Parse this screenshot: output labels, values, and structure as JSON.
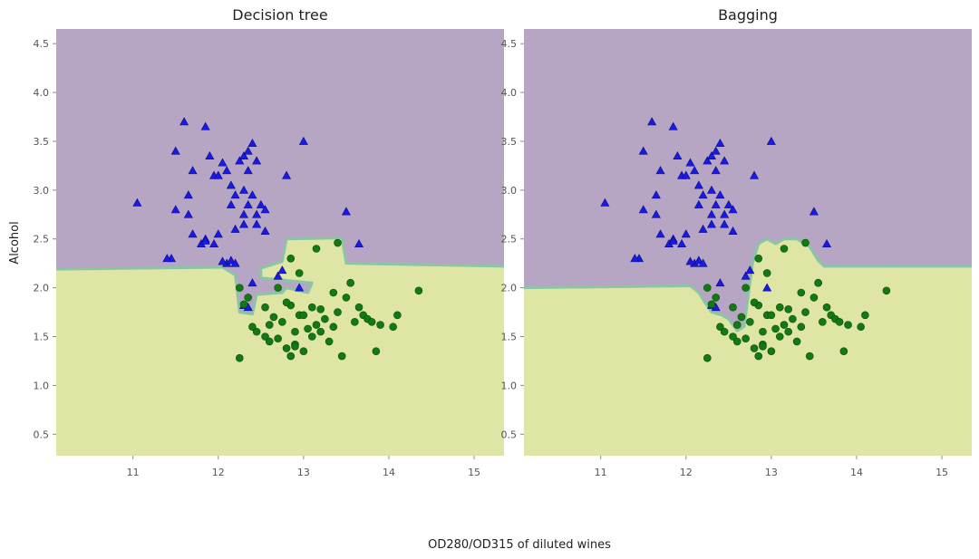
{
  "figure": {
    "xlabel": "OD280/OD315 of diluted wines",
    "ylabel": "Alcohol"
  },
  "colors": {
    "region_class0": "#b6a6c4",
    "region_class1": "#dfe5a4",
    "boundary": "#8cc4a6",
    "class0_marker": "#1a1ae6",
    "class1_marker": "#137a13"
  },
  "chart_data": [
    {
      "type": "scatter",
      "title": "Decision tree",
      "xlim": [
        10.1,
        15.35
      ],
      "ylim": [
        0.28,
        4.65
      ],
      "xticks": [
        "11",
        "12",
        "13",
        "14",
        "15"
      ],
      "yticks": [
        "0.5",
        "1.0",
        "1.5",
        "2.0",
        "2.5",
        "3.0",
        "3.5",
        "4.0",
        "4.5"
      ],
      "grid": false,
      "decision_boundary": [
        [
          10.1,
          2.19
        ],
        [
          12.05,
          2.21
        ],
        [
          12.2,
          2.13
        ],
        [
          12.25,
          1.75
        ],
        [
          12.4,
          1.73
        ],
        [
          12.45,
          1.93
        ],
        [
          12.75,
          1.95
        ],
        [
          12.8,
          2.0
        ],
        [
          13.05,
          1.95
        ],
        [
          13.1,
          2.05
        ],
        [
          12.75,
          2.08
        ],
        [
          12.5,
          2.1
        ],
        [
          12.5,
          2.2
        ],
        [
          12.75,
          2.27
        ],
        [
          12.8,
          2.5
        ],
        [
          13.45,
          2.51
        ],
        [
          13.5,
          2.25
        ],
        [
          15.35,
          2.22
        ]
      ],
      "series": [
        {
          "marker": "triangle",
          "x": [
            11.05,
            11.45,
            11.6,
            11.5,
            11.7,
            11.65,
            11.65,
            11.85,
            11.9,
            11.95,
            12.0,
            12.05,
            12.1,
            12.15,
            12.2,
            12.25,
            12.3,
            12.35,
            12.4,
            12.35,
            12.3,
            12.45,
            12.4,
            12.5,
            12.35,
            12.3,
            12.45,
            12.55,
            12.3,
            12.45,
            12.15,
            12.2,
            12.0,
            11.95,
            11.85,
            11.8,
            11.85,
            11.4,
            11.5,
            11.7,
            12.1,
            12.05,
            12.15,
            12.2,
            12.4,
            12.7,
            12.75,
            12.95,
            13.5,
            13.65,
            12.55,
            12.8,
            13.0,
            12.3,
            12.35
          ],
          "y": [
            2.87,
            2.3,
            3.7,
            3.4,
            3.2,
            2.95,
            2.75,
            3.65,
            3.35,
            3.15,
            3.15,
            3.28,
            3.2,
            3.05,
            2.95,
            3.3,
            3.35,
            3.4,
            3.48,
            3.2,
            3.0,
            3.3,
            2.95,
            2.85,
            2.85,
            2.75,
            2.75,
            2.8,
            2.65,
            2.65,
            2.85,
            2.6,
            2.55,
            2.45,
            2.5,
            2.45,
            2.48,
            2.3,
            2.8,
            2.55,
            2.25,
            2.27,
            2.28,
            2.25,
            2.05,
            2.12,
            2.18,
            2.0,
            2.78,
            2.45,
            2.58,
            3.15,
            3.5,
            1.82,
            1.8
          ]
        },
        {
          "marker": "circle",
          "x": [
            12.25,
            12.3,
            12.4,
            12.45,
            12.55,
            12.6,
            12.65,
            12.7,
            12.75,
            12.8,
            12.85,
            12.9,
            12.95,
            13.0,
            13.05,
            13.1,
            13.15,
            13.2,
            13.25,
            13.3,
            13.35,
            13.4,
            13.45,
            13.5,
            13.55,
            13.6,
            13.65,
            13.7,
            13.75,
            13.8,
            13.85,
            13.9,
            14.05,
            14.1,
            14.35,
            12.25,
            12.35,
            12.55,
            12.6,
            12.85,
            12.9,
            13.0,
            13.1,
            13.2,
            13.35,
            13.55,
            12.85,
            12.95,
            13.15,
            13.4,
            12.7,
            12.8,
            12.9
          ],
          "y": [
            1.28,
            1.83,
            1.6,
            1.55,
            1.5,
            1.45,
            1.7,
            1.48,
            1.65,
            1.38,
            1.3,
            1.42,
            1.72,
            1.35,
            1.58,
            1.5,
            1.62,
            1.55,
            1.68,
            1.45,
            1.6,
            1.75,
            1.3,
            1.9,
            2.05,
            1.65,
            1.8,
            1.72,
            1.68,
            1.65,
            1.35,
            1.62,
            1.6,
            1.72,
            1.97,
            2.0,
            1.9,
            1.8,
            1.62,
            1.82,
            1.55,
            1.72,
            1.8,
            1.78,
            1.95,
            2.05,
            2.3,
            2.15,
            2.4,
            2.46,
            2.0,
            1.85,
            1.4
          ]
        }
      ]
    },
    {
      "type": "scatter",
      "title": "Bagging",
      "xlim": [
        10.1,
        15.35
      ],
      "ylim": [
        0.28,
        4.65
      ],
      "xticks": [
        "11",
        "12",
        "13",
        "14",
        "15"
      ],
      "yticks": [
        "0.5",
        "1.0",
        "1.5",
        "2.0",
        "2.5",
        "3.0",
        "3.5",
        "4.0",
        "4.5"
      ],
      "grid": false,
      "decision_boundary": [
        [
          10.1,
          2.0
        ],
        [
          12.05,
          2.02
        ],
        [
          12.15,
          1.95
        ],
        [
          12.22,
          1.85
        ],
        [
          12.3,
          1.75
        ],
        [
          12.42,
          1.72
        ],
        [
          12.5,
          1.68
        ],
        [
          12.55,
          1.62
        ],
        [
          12.6,
          1.56
        ],
        [
          12.68,
          1.6
        ],
        [
          12.72,
          1.85
        ],
        [
          12.78,
          2.25
        ],
        [
          12.85,
          2.45
        ],
        [
          12.95,
          2.5
        ],
        [
          13.05,
          2.45
        ],
        [
          13.15,
          2.5
        ],
        [
          13.3,
          2.5
        ],
        [
          13.45,
          2.42
        ],
        [
          13.55,
          2.28
        ],
        [
          13.62,
          2.22
        ],
        [
          15.35,
          2.22
        ]
      ],
      "series": [
        {
          "marker": "triangle",
          "x": [
            11.05,
            11.45,
            11.6,
            11.5,
            11.7,
            11.65,
            11.65,
            11.85,
            11.9,
            11.95,
            12.0,
            12.05,
            12.1,
            12.15,
            12.2,
            12.25,
            12.3,
            12.35,
            12.4,
            12.35,
            12.3,
            12.45,
            12.4,
            12.5,
            12.35,
            12.3,
            12.45,
            12.55,
            12.3,
            12.45,
            12.15,
            12.2,
            12.0,
            11.95,
            11.85,
            11.8,
            11.85,
            11.4,
            11.5,
            11.7,
            12.1,
            12.05,
            12.15,
            12.2,
            12.4,
            12.7,
            12.75,
            12.95,
            13.5,
            13.65,
            12.55,
            12.8,
            13.0,
            12.3,
            12.35
          ],
          "y": [
            2.87,
            2.3,
            3.7,
            3.4,
            3.2,
            2.95,
            2.75,
            3.65,
            3.35,
            3.15,
            3.15,
            3.28,
            3.2,
            3.05,
            2.95,
            3.3,
            3.35,
            3.4,
            3.48,
            3.2,
            3.0,
            3.3,
            2.95,
            2.85,
            2.85,
            2.75,
            2.75,
            2.8,
            2.65,
            2.65,
            2.85,
            2.6,
            2.55,
            2.45,
            2.5,
            2.45,
            2.48,
            2.3,
            2.8,
            2.55,
            2.25,
            2.27,
            2.28,
            2.25,
            2.05,
            2.12,
            2.18,
            2.0,
            2.78,
            2.45,
            2.58,
            3.15,
            3.5,
            1.82,
            1.8
          ]
        },
        {
          "marker": "circle",
          "x": [
            12.25,
            12.3,
            12.4,
            12.45,
            12.55,
            12.6,
            12.65,
            12.7,
            12.75,
            12.8,
            12.85,
            12.9,
            12.95,
            13.0,
            13.05,
            13.1,
            13.15,
            13.2,
            13.25,
            13.3,
            13.35,
            13.4,
            13.45,
            13.5,
            13.55,
            13.6,
            13.65,
            13.7,
            13.75,
            13.8,
            13.85,
            13.9,
            14.05,
            14.1,
            14.35,
            12.25,
            12.35,
            12.55,
            12.6,
            12.85,
            12.9,
            13.0,
            13.1,
            13.2,
            13.35,
            13.55,
            12.85,
            12.95,
            13.15,
            13.4,
            12.7,
            12.8,
            12.9
          ],
          "y": [
            1.28,
            1.83,
            1.6,
            1.55,
            1.5,
            1.45,
            1.7,
            1.48,
            1.65,
            1.38,
            1.3,
            1.42,
            1.72,
            1.35,
            1.58,
            1.5,
            1.62,
            1.55,
            1.68,
            1.45,
            1.6,
            1.75,
            1.3,
            1.9,
            2.05,
            1.65,
            1.8,
            1.72,
            1.68,
            1.65,
            1.35,
            1.62,
            1.6,
            1.72,
            1.97,
            2.0,
            1.9,
            1.8,
            1.62,
            1.82,
            1.55,
            1.72,
            1.8,
            1.78,
            1.95,
            2.05,
            2.3,
            2.15,
            2.4,
            2.46,
            2.0,
            1.85,
            1.4
          ]
        }
      ]
    }
  ]
}
